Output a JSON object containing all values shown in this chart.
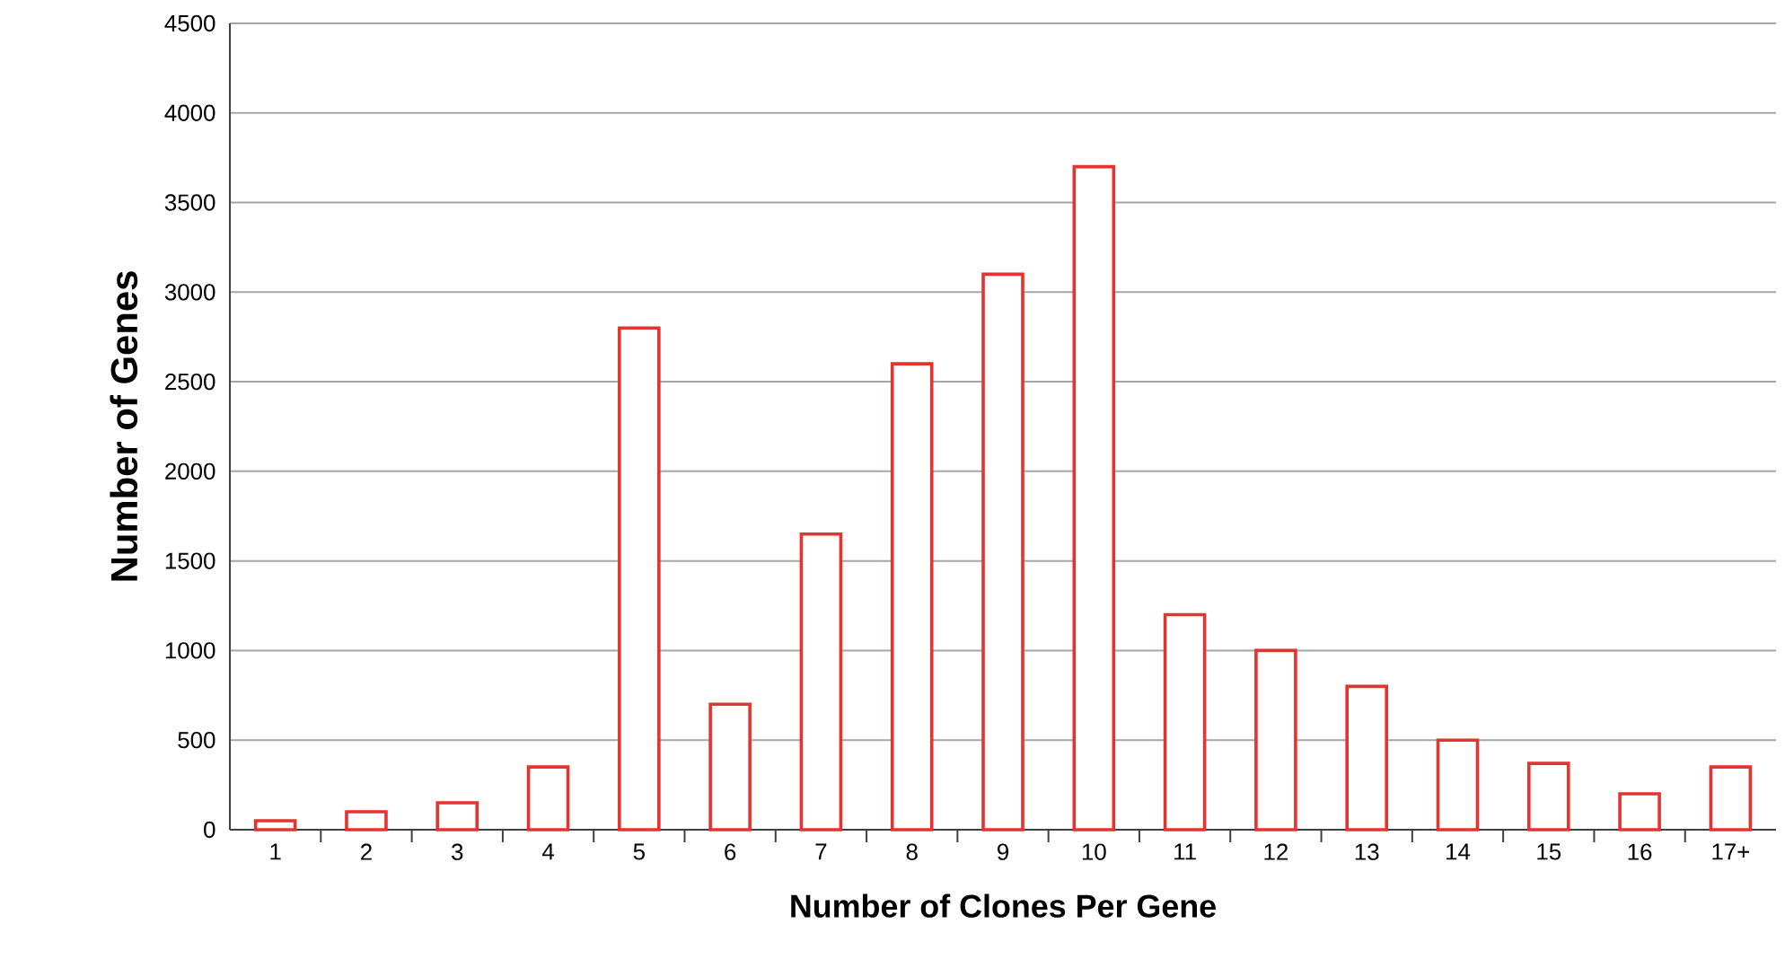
{
  "chart_data": {
    "type": "bar",
    "xlabel": "Number of Clones Per Gene",
    "ylabel": "Number of Genes",
    "categories": [
      "1",
      "2",
      "3",
      "4",
      "5",
      "6",
      "7",
      "8",
      "9",
      "10",
      "11",
      "12",
      "13",
      "14",
      "15",
      "16",
      "17+"
    ],
    "values": [
      50,
      100,
      150,
      350,
      2800,
      700,
      1650,
      2600,
      3100,
      3700,
      1200,
      1000,
      800,
      500,
      370,
      200,
      350
    ],
    "color": "#e3342f",
    "ylim": [
      0,
      4500
    ],
    "yticks": [
      0,
      500,
      1000,
      1500,
      2000,
      2500,
      3000,
      3500,
      4000,
      4500
    ],
    "grid": "y"
  }
}
